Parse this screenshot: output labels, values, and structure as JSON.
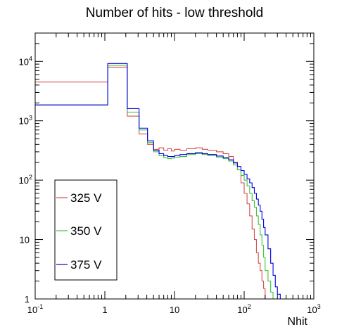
{
  "chart_data": {
    "type": "line",
    "title": "Number of hits - low threshold",
    "xlabel": "Nhit",
    "ylabel": "",
    "x_scale": "log",
    "y_scale": "log",
    "xlim": [
      0.1,
      1000
    ],
    "ylim": [
      1,
      30000
    ],
    "x_ticks": [
      {
        "value": 0.1,
        "base": "10",
        "exp": "-1"
      },
      {
        "value": 1,
        "base": "1",
        "exp": ""
      },
      {
        "value": 10,
        "base": "10",
        "exp": ""
      },
      {
        "value": 100,
        "base": "10",
        "exp": "2"
      },
      {
        "value": 1000,
        "base": "10",
        "exp": "3"
      }
    ],
    "y_ticks": [
      {
        "value": 1,
        "base": "1",
        "exp": ""
      },
      {
        "value": 10,
        "base": "10",
        "exp": ""
      },
      {
        "value": 100,
        "base": "10",
        "exp": "2"
      },
      {
        "value": 1000,
        "base": "10",
        "exp": "3"
      },
      {
        "value": 10000,
        "base": "10",
        "exp": "4"
      }
    ],
    "grid": false,
    "legend_position": "bottom-left",
    "series": [
      {
        "name": "325 V",
        "color": "#d0504e",
        "x": [
          0.1,
          1.1,
          2.1,
          3.1,
          4.1,
          5,
          6,
          7,
          8,
          9,
          10,
          12,
          15,
          20,
          25,
          30,
          40,
          50,
          60,
          70,
          80,
          90,
          100,
          110,
          120,
          130,
          140,
          150,
          160,
          170,
          180,
          190,
          200,
          210,
          220
        ],
        "values": [
          4500,
          8000,
          1200,
          600,
          400,
          330,
          350,
          320,
          340,
          310,
          330,
          320,
          340,
          350,
          330,
          320,
          300,
          280,
          250,
          200,
          150,
          90,
          60,
          40,
          25,
          15,
          10,
          6,
          4,
          3,
          2,
          1.5,
          1,
          1,
          1
        ]
      },
      {
        "name": "350 V",
        "color": "#3ec23e",
        "x": [
          0.1,
          1.1,
          2.1,
          3.1,
          4.1,
          5,
          6,
          7,
          8,
          9,
          10,
          12,
          15,
          20,
          25,
          30,
          40,
          50,
          60,
          70,
          80,
          90,
          100,
          110,
          120,
          130,
          140,
          150,
          160,
          170,
          180,
          190,
          200,
          220,
          240,
          260
        ],
        "values": [
          1850,
          8600,
          1400,
          700,
          430,
          300,
          260,
          240,
          230,
          235,
          245,
          250,
          270,
          280,
          270,
          260,
          245,
          230,
          210,
          180,
          150,
          120,
          100,
          80,
          60,
          45,
          35,
          25,
          18,
          12,
          8,
          5,
          3,
          2,
          1.3,
          1
        ]
      },
      {
        "name": "375 V",
        "color": "#0000e6",
        "x": [
          0.1,
          1.1,
          2.1,
          3.1,
          4.1,
          5,
          6,
          7,
          8,
          9,
          10,
          12,
          15,
          20,
          25,
          30,
          40,
          50,
          60,
          70,
          80,
          90,
          100,
          110,
          120,
          130,
          140,
          150,
          160,
          170,
          180,
          190,
          200,
          220,
          240,
          260,
          280,
          300,
          330
        ],
        "values": [
          1850,
          9200,
          1600,
          750,
          460,
          320,
          280,
          260,
          250,
          250,
          260,
          270,
          280,
          290,
          280,
          270,
          255,
          240,
          220,
          195,
          170,
          145,
          125,
          105,
          90,
          75,
          60,
          48,
          38,
          30,
          22,
          16,
          12,
          7,
          4,
          2.5,
          1.6,
          1.2,
          1
        ]
      }
    ]
  }
}
